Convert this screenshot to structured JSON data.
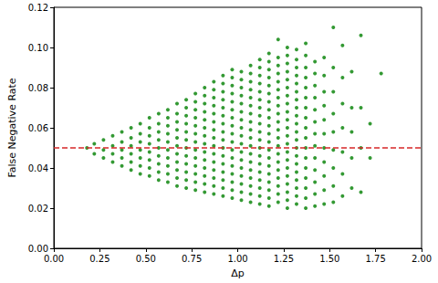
{
  "chart_data": {
    "type": "scatter",
    "x_label": "Δp",
    "y_label": "False Negative Rate",
    "color": "#008000",
    "marker": "o",
    "grid": false,
    "xlim": [
      0,
      2
    ],
    "ylim": [
      0,
      0.12
    ],
    "xticks": [
      {
        "value": 0,
        "label": "0.00"
      },
      0.25,
      {
        "value": 0.5,
        "label": "0.50"
      },
      0.75,
      {
        "value": 1,
        "label": "1.00"
      },
      1.25,
      {
        "value": 1.5,
        "label": "1.50"
      },
      1.75,
      {
        "value": 2,
        "label": "2.00"
      }
    ],
    "yticks": [
      {
        "value": 0,
        "label": "0.00"
      },
      0.02,
      0.04,
      0.06,
      0.08,
      {
        "value": 0.1,
        "label": "0.10"
      },
      0.12
    ],
    "reference_line": {
      "y": 0.05,
      "color": "#d62728",
      "line_style": "dashed"
    },
    "x": [
      0.18,
      0.22,
      0.22,
      0.27,
      0.27,
      0.27,
      0.32,
      0.32,
      0.32,
      0.32,
      0.37,
      0.37,
      0.37,
      0.37,
      0.37,
      0.42,
      0.42,
      0.42,
      0.42,
      0.42,
      0.42,
      0.47,
      0.47,
      0.47,
      0.47,
      0.47,
      0.47,
      0.47,
      0.52,
      0.52,
      0.52,
      0.52,
      0.52,
      0.52,
      0.52,
      0.52,
      0.57,
      0.57,
      0.57,
      0.57,
      0.57,
      0.57,
      0.57,
      0.57,
      0.57,
      0.62,
      0.62,
      0.62,
      0.62,
      0.62,
      0.62,
      0.62,
      0.62,
      0.62,
      0.62,
      0.67,
      0.67,
      0.67,
      0.67,
      0.67,
      0.67,
      0.67,
      0.67,
      0.67,
      0.67,
      0.67,
      0.72,
      0.72,
      0.72,
      0.72,
      0.72,
      0.72,
      0.72,
      0.72,
      0.72,
      0.72,
      0.72,
      0.72,
      0.77,
      0.77,
      0.77,
      0.77,
      0.77,
      0.77,
      0.77,
      0.77,
      0.77,
      0.77,
      0.77,
      0.77,
      0.77,
      0.82,
      0.82,
      0.82,
      0.82,
      0.82,
      0.82,
      0.82,
      0.82,
      0.82,
      0.82,
      0.82,
      0.82,
      0.82,
      0.82,
      0.87,
      0.87,
      0.87,
      0.87,
      0.87,
      0.87,
      0.87,
      0.87,
      0.87,
      0.87,
      0.87,
      0.87,
      0.87,
      0.87,
      0.87,
      0.92,
      0.92,
      0.92,
      0.92,
      0.92,
      0.92,
      0.92,
      0.92,
      0.92,
      0.92,
      0.92,
      0.92,
      0.92,
      0.92,
      0.92,
      0.92,
      0.97,
      0.97,
      0.97,
      0.97,
      0.97,
      0.97,
      0.97,
      0.97,
      0.97,
      0.97,
      0.97,
      0.97,
      0.97,
      0.97,
      0.97,
      0.97,
      0.97,
      1.02,
      1.02,
      1.02,
      1.02,
      1.02,
      1.02,
      1.02,
      1.02,
      1.02,
      1.02,
      1.02,
      1.02,
      1.02,
      1.02,
      1.02,
      1.02,
      1.02,
      1.07,
      1.07,
      1.07,
      1.07,
      1.07,
      1.07,
      1.07,
      1.07,
      1.07,
      1.07,
      1.07,
      1.07,
      1.07,
      1.07,
      1.07,
      1.07,
      1.07,
      1.07,
      1.12,
      1.12,
      1.12,
      1.12,
      1.12,
      1.12,
      1.12,
      1.12,
      1.12,
      1.12,
      1.12,
      1.12,
      1.12,
      1.12,
      1.12,
      1.12,
      1.12,
      1.12,
      1.12,
      1.17,
      1.17,
      1.17,
      1.17,
      1.17,
      1.17,
      1.17,
      1.17,
      1.17,
      1.17,
      1.17,
      1.17,
      1.17,
      1.17,
      1.17,
      1.17,
      1.17,
      1.17,
      1.17,
      1.17,
      1.22,
      1.22,
      1.22,
      1.22,
      1.22,
      1.22,
      1.22,
      1.22,
      1.22,
      1.22,
      1.22,
      1.22,
      1.22,
      1.22,
      1.22,
      1.22,
      1.22,
      1.22,
      1.22,
      1.22,
      1.27,
      1.27,
      1.27,
      1.27,
      1.27,
      1.27,
      1.27,
      1.27,
      1.27,
      1.27,
      1.27,
      1.27,
      1.27,
      1.27,
      1.27,
      1.27,
      1.27,
      1.27,
      1.27,
      1.27,
      1.27,
      1.32,
      1.32,
      1.32,
      1.32,
      1.32,
      1.32,
      1.32,
      1.32,
      1.32,
      1.32,
      1.32,
      1.32,
      1.32,
      1.32,
      1.32,
      1.32,
      1.32,
      1.32,
      1.32,
      1.32,
      1.37,
      1.37,
      1.37,
      1.37,
      1.37,
      1.37,
      1.37,
      1.37,
      1.37,
      1.37,
      1.37,
      1.37,
      1.37,
      1.37,
      1.37,
      1.37,
      1.37,
      1.42,
      1.42,
      1.42,
      1.42,
      1.42,
      1.42,
      1.42,
      1.42,
      1.42,
      1.42,
      1.42,
      1.42,
      1.42,
      1.47,
      1.47,
      1.47,
      1.47,
      1.47,
      1.47,
      1.47,
      1.47,
      1.47,
      1.47,
      1.47,
      1.52,
      1.52,
      1.52,
      1.52,
      1.52,
      1.52,
      1.52,
      1.52,
      1.52,
      1.57,
      1.57,
      1.57,
      1.57,
      1.57,
      1.57,
      1.57,
      1.62,
      1.62,
      1.62,
      1.62,
      1.62,
      1.67,
      1.67,
      1.67,
      1.67,
      1.72,
      1.72,
      1.78
    ],
    "values": [
      0.05,
      0.047,
      0.052,
      0.045,
      0.049,
      0.054,
      0.043,
      0.047,
      0.051,
      0.056,
      0.041,
      0.045,
      0.049,
      0.053,
      0.058,
      0.039,
      0.043,
      0.047,
      0.051,
      0.055,
      0.06,
      0.037,
      0.041,
      0.045,
      0.049,
      0.053,
      0.057,
      0.062,
      0.036,
      0.04,
      0.044,
      0.048,
      0.052,
      0.056,
      0.06,
      0.065,
      0.034,
      0.038,
      0.042,
      0.046,
      0.05,
      0.054,
      0.058,
      0.062,
      0.067,
      0.033,
      0.037,
      0.041,
      0.045,
      0.049,
      0.053,
      0.057,
      0.061,
      0.065,
      0.069,
      0.031,
      0.035,
      0.039,
      0.043,
      0.047,
      0.051,
      0.055,
      0.059,
      0.063,
      0.067,
      0.072,
      0.03,
      0.034,
      0.038,
      0.042,
      0.046,
      0.05,
      0.054,
      0.058,
      0.062,
      0.066,
      0.07,
      0.074,
      0.029,
      0.033,
      0.037,
      0.041,
      0.045,
      0.049,
      0.053,
      0.057,
      0.061,
      0.065,
      0.069,
      0.073,
      0.077,
      0.028,
      0.032,
      0.036,
      0.04,
      0.044,
      0.048,
      0.052,
      0.056,
      0.06,
      0.064,
      0.068,
      0.072,
      0.076,
      0.08,
      0.027,
      0.031,
      0.035,
      0.039,
      0.043,
      0.047,
      0.051,
      0.055,
      0.059,
      0.063,
      0.067,
      0.071,
      0.075,
      0.079,
      0.083,
      0.026,
      0.03,
      0.034,
      0.038,
      0.042,
      0.046,
      0.05,
      0.054,
      0.058,
      0.062,
      0.066,
      0.07,
      0.074,
      0.078,
      0.082,
      0.086,
      0.025,
      0.029,
      0.033,
      0.037,
      0.041,
      0.045,
      0.049,
      0.053,
      0.057,
      0.061,
      0.065,
      0.069,
      0.073,
      0.077,
      0.081,
      0.085,
      0.089,
      0.024,
      0.028,
      0.032,
      0.036,
      0.04,
      0.044,
      0.048,
      0.052,
      0.056,
      0.06,
      0.064,
      0.068,
      0.072,
      0.076,
      0.08,
      0.084,
      0.088,
      0.023,
      0.027,
      0.031,
      0.035,
      0.039,
      0.043,
      0.047,
      0.051,
      0.055,
      0.059,
      0.063,
      0.067,
      0.071,
      0.075,
      0.079,
      0.083,
      0.087,
      0.091,
      0.022,
      0.026,
      0.03,
      0.034,
      0.038,
      0.042,
      0.046,
      0.05,
      0.054,
      0.058,
      0.062,
      0.066,
      0.07,
      0.074,
      0.078,
      0.082,
      0.086,
      0.09,
      0.094,
      0.021,
      0.025,
      0.029,
      0.033,
      0.037,
      0.041,
      0.045,
      0.049,
      0.053,
      0.057,
      0.061,
      0.065,
      0.069,
      0.073,
      0.077,
      0.081,
      0.085,
      0.089,
      0.093,
      0.097,
      0.023,
      0.027,
      0.031,
      0.035,
      0.039,
      0.043,
      0.047,
      0.051,
      0.055,
      0.059,
      0.063,
      0.067,
      0.071,
      0.075,
      0.079,
      0.083,
      0.087,
      0.091,
      0.095,
      0.104,
      0.02,
      0.024,
      0.028,
      0.032,
      0.036,
      0.04,
      0.044,
      0.048,
      0.052,
      0.056,
      0.06,
      0.064,
      0.068,
      0.072,
      0.076,
      0.08,
      0.084,
      0.088,
      0.092,
      0.096,
      0.1,
      0.022,
      0.026,
      0.03,
      0.034,
      0.038,
      0.042,
      0.046,
      0.05,
      0.054,
      0.058,
      0.062,
      0.066,
      0.07,
      0.074,
      0.078,
      0.082,
      0.086,
      0.09,
      0.094,
      0.099,
      0.02,
      0.025,
      0.03,
      0.035,
      0.04,
      0.045,
      0.05,
      0.055,
      0.06,
      0.065,
      0.07,
      0.075,
      0.08,
      0.085,
      0.09,
      0.096,
      0.102,
      0.021,
      0.027,
      0.033,
      0.039,
      0.045,
      0.051,
      0.057,
      0.063,
      0.069,
      0.075,
      0.081,
      0.087,
      0.093,
      0.022,
      0.029,
      0.036,
      0.043,
      0.05,
      0.057,
      0.064,
      0.071,
      0.078,
      0.086,
      0.095,
      0.023,
      0.031,
      0.04,
      0.049,
      0.058,
      0.067,
      0.078,
      0.09,
      0.11,
      0.026,
      0.037,
      0.048,
      0.06,
      0.072,
      0.085,
      0.101,
      0.03,
      0.045,
      0.058,
      0.07,
      0.088,
      0.028,
      0.05,
      0.07,
      0.106,
      0.045,
      0.062,
      0.087
    ]
  }
}
